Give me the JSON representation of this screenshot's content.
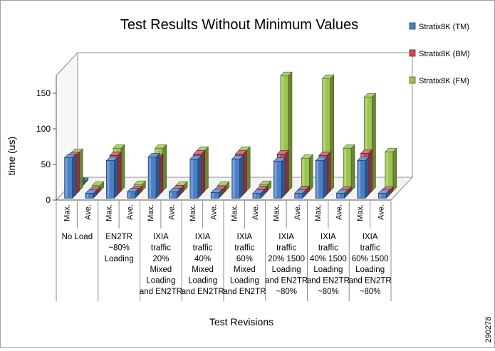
{
  "chart_data": {
    "type": "bar",
    "title": "Test Results Without Minimum Values",
    "xlabel": "Test Revisions",
    "ylabel": "time (us)",
    "ylim": [
      0,
      175
    ],
    "yticks": [
      0,
      50,
      100,
      150
    ],
    "figure_id": "290278",
    "grid": false,
    "legend_position": "right",
    "groups": [
      {
        "label": [
          "No Load"
        ]
      },
      {
        "label": [
          "EN2TR",
          "~80%",
          "Loading"
        ]
      },
      {
        "label": [
          "IXIA",
          "traffic",
          "20%",
          "Mixed",
          "Loading",
          "and EN2TR"
        ]
      },
      {
        "label": [
          "IXIA",
          "traffic",
          "40%",
          "Mixed",
          "Loading",
          "and EN2TR"
        ]
      },
      {
        "label": [
          "IXIA",
          "traffic",
          "60%",
          "Mixed",
          "Loading",
          "and EN2TR"
        ]
      },
      {
        "label": [
          "IXIA",
          "traffic",
          "20% 1500",
          "Loading",
          "and EN2TR",
          "~80%"
        ]
      },
      {
        "label": [
          "IXIA",
          "traffic",
          "40% 1500",
          "Loading",
          "and EN2TR",
          "~80%"
        ]
      },
      {
        "label": [
          "IXIA",
          "traffic",
          "60% 1500",
          "Loading",
          "and EN2TR",
          "~80%"
        ]
      }
    ],
    "subcategories": [
      "Max.",
      "Ave."
    ],
    "series": [
      {
        "name": "Stratix8K (TM)",
        "color": "#4a7fc8",
        "values": [
          [
            57,
            7
          ],
          [
            53,
            9
          ],
          [
            58,
            9
          ],
          [
            55,
            8
          ],
          [
            55,
            7
          ],
          [
            52,
            7
          ],
          [
            53,
            7
          ],
          [
            53,
            7
          ]
        ]
      },
      {
        "name": "Stratix8K (BM)",
        "color": "#c84a56",
        "values": [
          [
            55,
            6
          ],
          [
            55,
            7
          ],
          [
            52,
            8
          ],
          [
            57,
            7
          ],
          [
            57,
            7
          ],
          [
            57,
            7
          ],
          [
            55,
            6
          ],
          [
            58,
            6
          ]
        ]
      },
      {
        "name": "Stratix8K (FM)",
        "color": "#9cc44e",
        "values": [
          [
            54,
            8
          ],
          [
            60,
            9
          ],
          [
            60,
            8
          ],
          [
            57,
            8
          ],
          [
            57,
            9
          ],
          [
            162,
            46
          ],
          [
            158,
            60
          ],
          [
            132,
            55
          ]
        ]
      },
      {
        "name": "",
        "color": "#2f9a96",
        "values": [
          [
            8,
            null
          ]
        ]
      },
      {
        "name": "",
        "color": "#6b8fd0",
        "values": [
          [
            3,
            null
          ]
        ]
      }
    ]
  }
}
